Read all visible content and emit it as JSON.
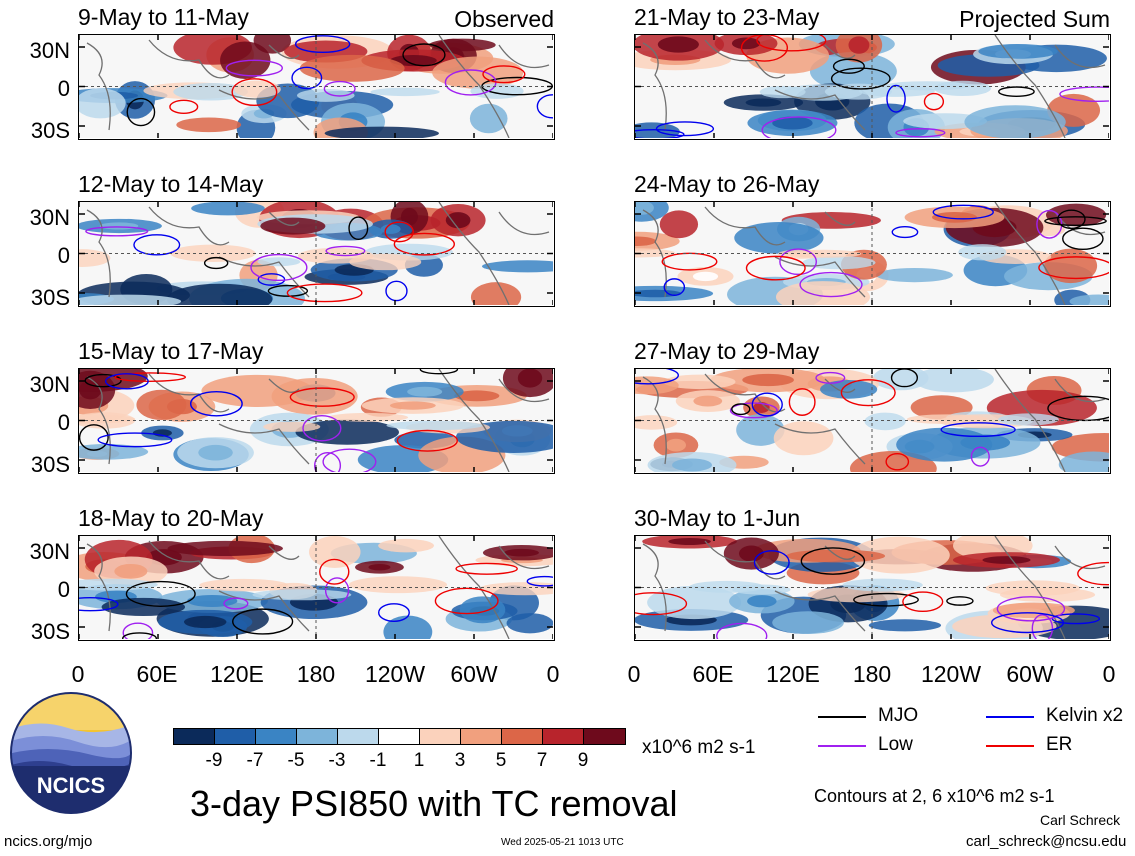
{
  "panels": [
    {
      "title": "9-May to 11-May",
      "corner": "Observed"
    },
    {
      "title": "12-May to 14-May",
      "corner": ""
    },
    {
      "title": "15-May to 17-May",
      "corner": ""
    },
    {
      "title": "18-May to 20-May",
      "corner": ""
    },
    {
      "title": "21-May to 23-May",
      "corner": "Projected Sum"
    },
    {
      "title": "24-May to 26-May",
      "corner": ""
    },
    {
      "title": "27-May to 29-May",
      "corner": ""
    },
    {
      "title": "30-May to 1-Jun",
      "corner": ""
    }
  ],
  "lat_labels": [
    "30N",
    "0",
    "30S"
  ],
  "lon_labels": [
    "0",
    "60E",
    "120E",
    "180",
    "120W",
    "60W",
    "0"
  ],
  "colorbar": {
    "colors": [
      "#0b2a5a",
      "#1f5ea8",
      "#3a84c4",
      "#7db4da",
      "#bcd9ec",
      "#ffffff",
      "#fbd2bc",
      "#f1a07e",
      "#dc6648",
      "#b8242c",
      "#6e0a1c"
    ],
    "labels": [
      "-9",
      "-7",
      "-5",
      "-3",
      "-1",
      "1",
      "3",
      "5",
      "7",
      "9"
    ],
    "units": "x10^6 m2 s-1"
  },
  "title": "3-day PSI850 with TC removal",
  "legend": [
    {
      "label": "MJO",
      "color": "#000000"
    },
    {
      "label": "Kelvin x2",
      "color": "#0000ee"
    },
    {
      "label": "Low",
      "color": "#a020f0"
    },
    {
      "label": "ER",
      "color": "#ee0000"
    }
  ],
  "contours_note": "Contours at 2, 6 x10^6 m2 s-1",
  "logo_text": "NCICS",
  "footer": {
    "url": "ncics.org/mjo",
    "timestamp": "Wed 2025-05-21 1013 UTC",
    "author": "Carl Schreck",
    "email": "carl_schreck@ncsu.edu"
  }
}
